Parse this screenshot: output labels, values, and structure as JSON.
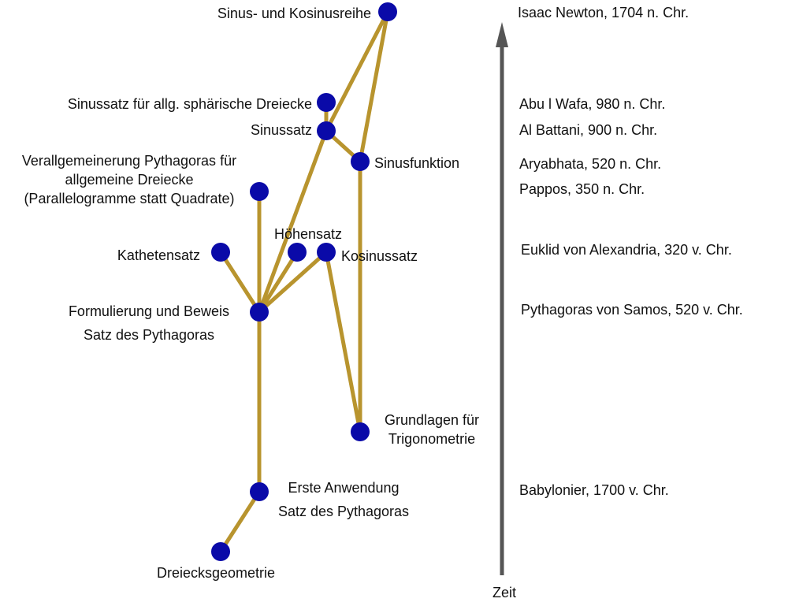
{
  "nodes": {
    "dreiecksgeometrie": {
      "label": "Dreiecksgeometrie"
    },
    "erste_anwendung": {
      "label_lines": [
        "Erste Anwendung",
        "Satz des Pythagoras"
      ]
    },
    "formulierung": {
      "label_lines": [
        "Formulierung und Beweis",
        "Satz des Pythagoras"
      ]
    },
    "kathetensatz": {
      "label": "Kathetensatz"
    },
    "hoehensatz": {
      "label": "Höhensatz"
    },
    "kosinussatz": {
      "label": "Kosinussatz"
    },
    "verallgemeinerung": {
      "label_lines": [
        "Verallgemeinerung Pythagoras für",
        "allgemeine Dreiecke",
        "(Parallelogramme statt Quadrate)"
      ]
    },
    "grundlagen": {
      "label_lines": [
        "Grundlagen für",
        "Trigonometrie"
      ]
    },
    "sinusfunktion": {
      "label": "Sinusfunktion"
    },
    "sinussatz": {
      "label": "Sinussatz"
    },
    "sinussatz_sph": {
      "label": "Sinussatz für allg. sphärische Dreiecke"
    },
    "reihe": {
      "label": "Sinus- und Kosinusreihe"
    }
  },
  "timeline": {
    "axis_label": "Zeit",
    "entries": [
      "Isaac Newton, 1704 n. Chr.",
      "Abu l Wafa, 980 n. Chr.",
      "Al Battani, 900 n. Chr.",
      "Aryabhata, 520 n. Chr.",
      "Pappos, 350 n. Chr.",
      "Euklid von Alexandria, 320 v. Chr.",
      "Pythagoras von Samos, 520 v. Chr.",
      "Babylonier, 1700 v. Chr."
    ]
  },
  "colors": {
    "edge": "#b8942e",
    "node": "#0a0aa8",
    "arrow": "#555555",
    "text": "#111111"
  }
}
